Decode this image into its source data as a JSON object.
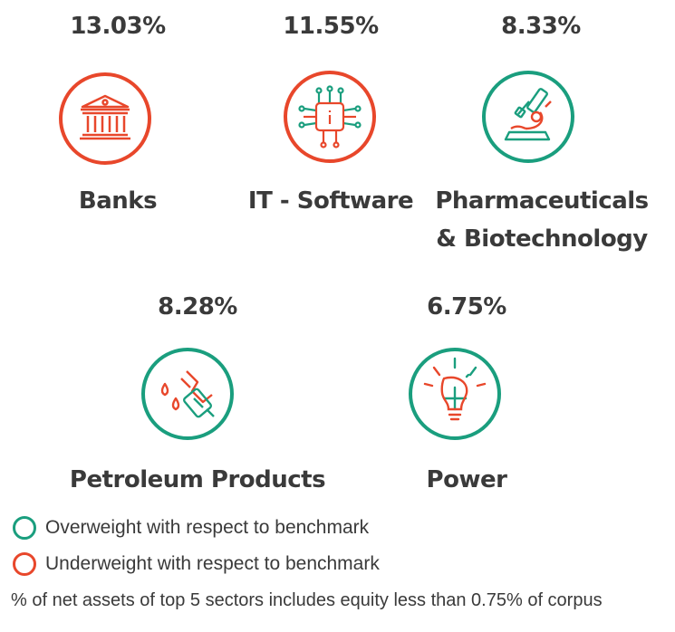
{
  "colors": {
    "overweight": "#1a9e7e",
    "underweight": "#e8472b",
    "text": "#3a3a3a"
  },
  "sectors": [
    {
      "pct": "13.03%",
      "name": "Banks",
      "icon": "bank-building-icon",
      "weight": "underweight"
    },
    {
      "pct": "11.55%",
      "name": "IT - Software",
      "icon": "chip-circuit-icon",
      "weight": "underweight"
    },
    {
      "pct": "8.33%",
      "name_line1": "Pharmaceuticals",
      "name_line2": "& Biotechnology",
      "icon": "microscope-icon",
      "weight": "overweight"
    },
    {
      "pct": "8.28%",
      "name": "Petroleum Products",
      "icon": "fuel-nozzle-icon",
      "weight": "overweight"
    },
    {
      "pct": "6.75%",
      "name": "Power",
      "icon": "light-bulb-icon",
      "weight": "overweight"
    }
  ],
  "legend": {
    "overweight": "Overweight with respect to benchmark",
    "underweight": "Underweight with respect to benchmark"
  },
  "footnote": "% of net assets of top 5 sectors includes equity less than 0.75% of corpus"
}
